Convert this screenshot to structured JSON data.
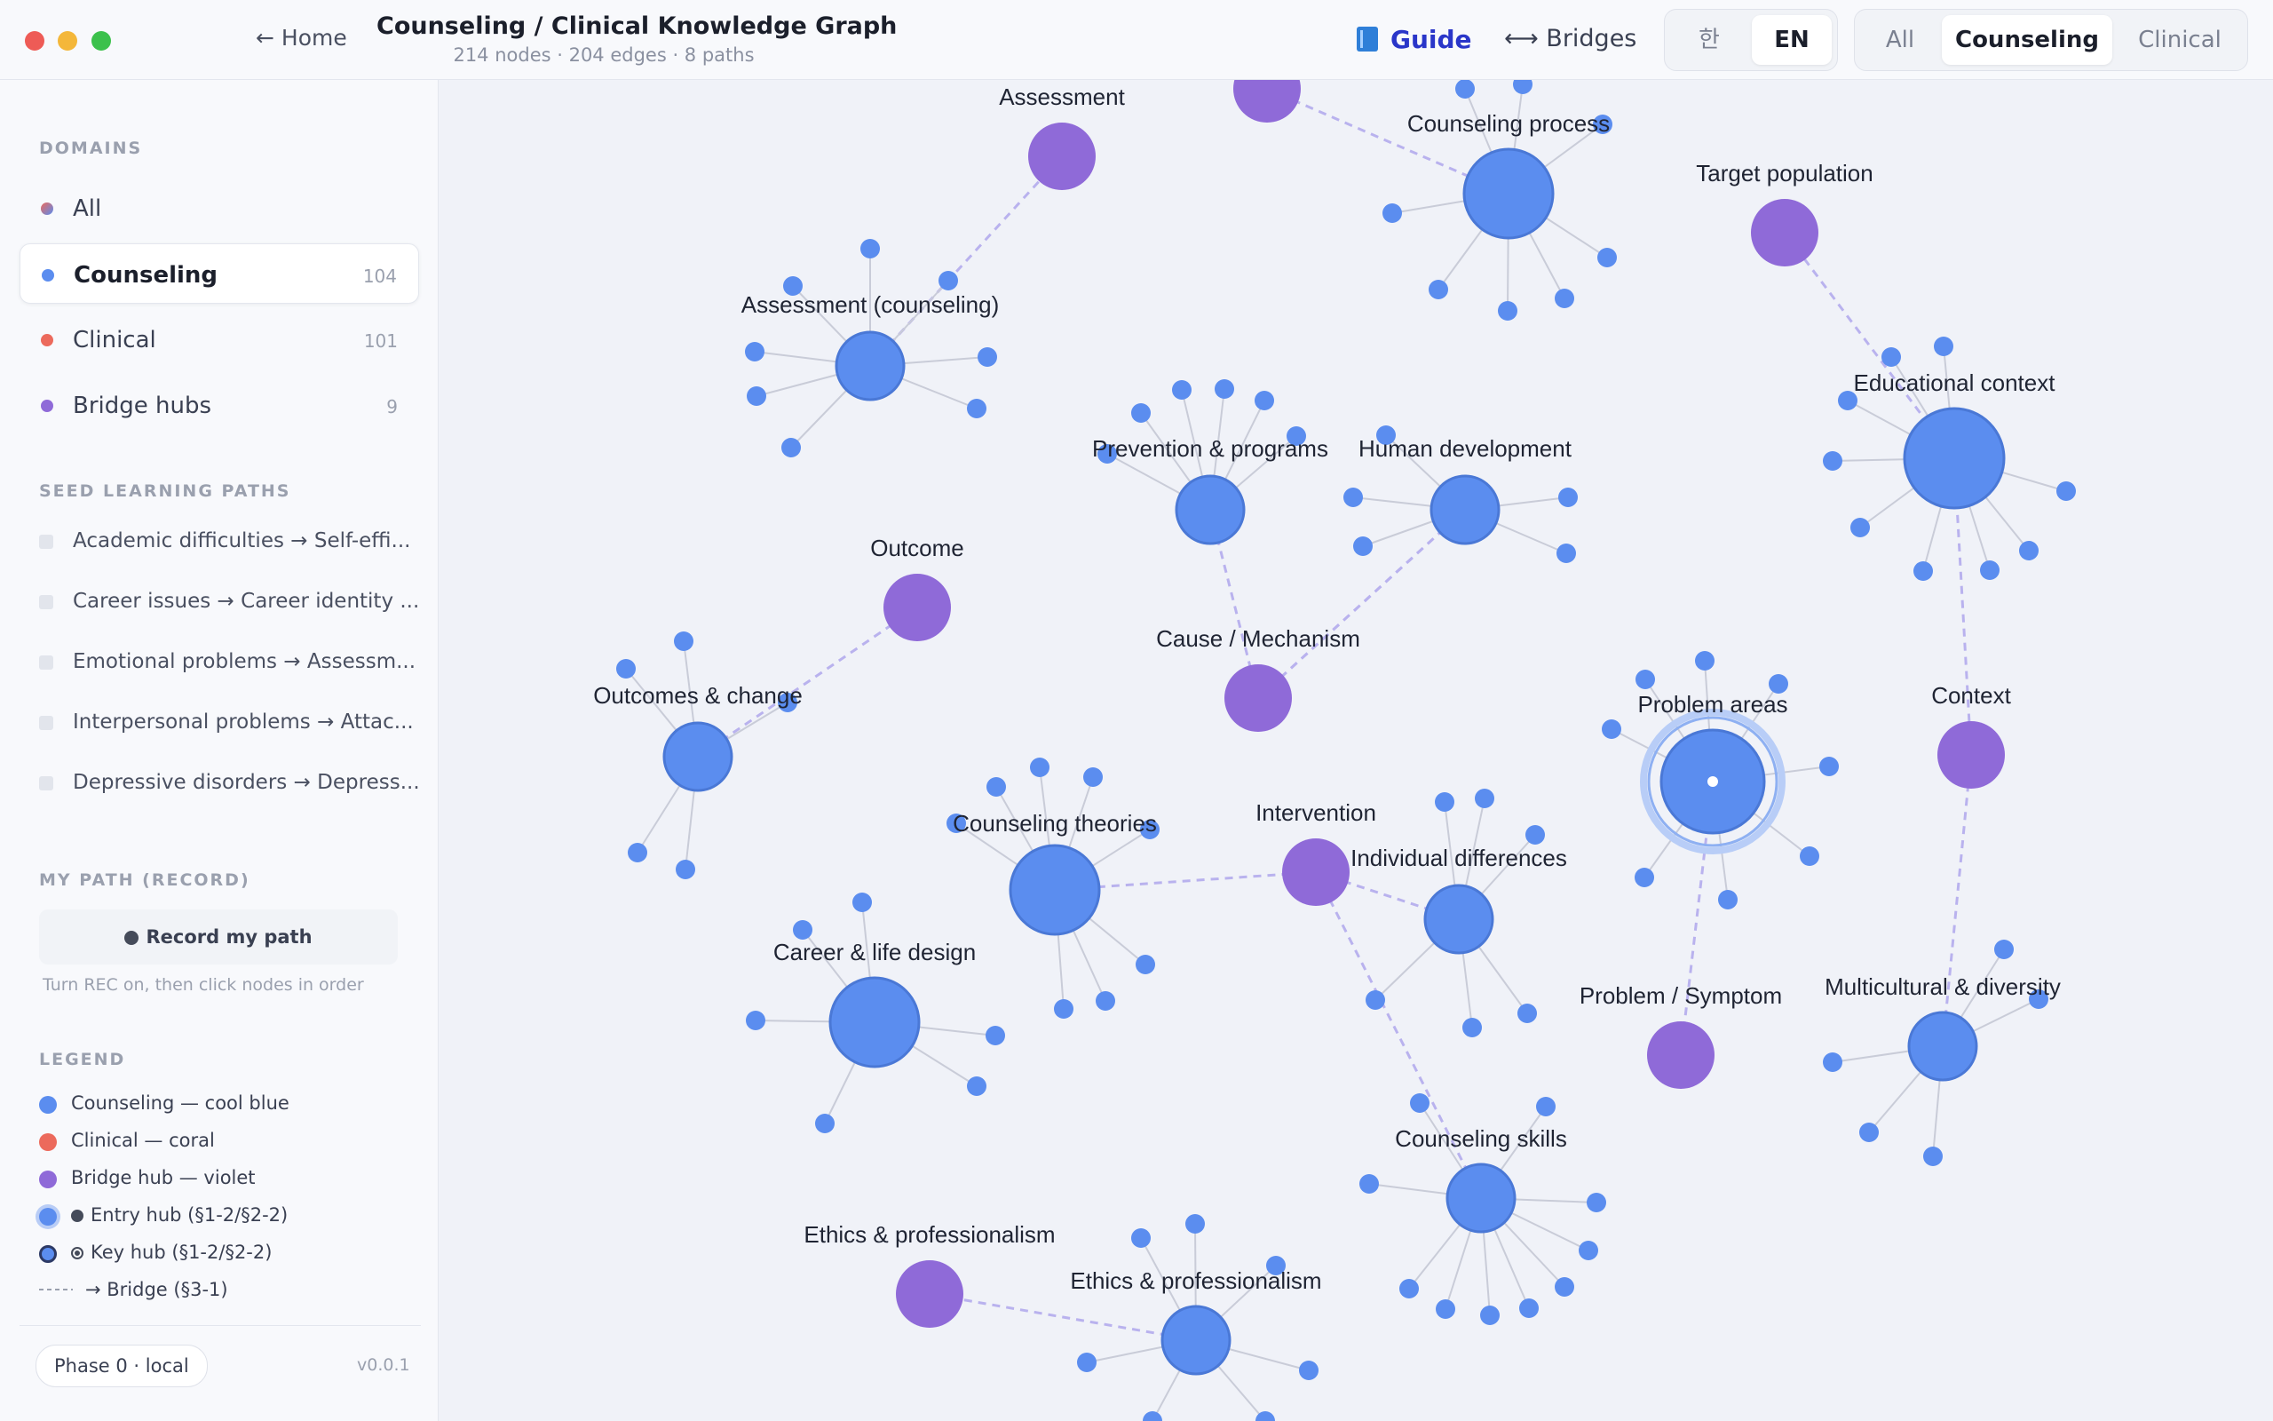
{
  "window": {
    "home_label": "← Home",
    "title": "Counseling / Clinical Knowledge Graph",
    "subtitle": "214 nodes · 204 edges · 8 paths"
  },
  "header": {
    "guide_label": "Guide",
    "bridges_label": "⟷ Bridges",
    "lang": [
      {
        "label": "한",
        "active": false
      },
      {
        "label": "EN",
        "active": true
      }
    ],
    "domain_tabs": [
      {
        "label": "All",
        "active": false
      },
      {
        "label": "Counseling",
        "active": true
      },
      {
        "label": "Clinical",
        "active": false
      }
    ]
  },
  "sidebar": {
    "domains_title": "DOMAINS",
    "domains": [
      {
        "label": "All",
        "count": "",
        "color": "#a080c0",
        "active": false
      },
      {
        "label": "Counseling",
        "count": "104",
        "color": "#5b8def",
        "active": true
      },
      {
        "label": "Clinical",
        "count": "101",
        "color": "#ec6a5c",
        "active": false
      },
      {
        "label": "Bridge hubs",
        "count": "9",
        "color": "#8f6ad8",
        "active": false
      }
    ],
    "paths_title": "SEED LEARNING PATHS",
    "paths": [
      "Academic difficulties → Self-effi...",
      "Career issues → Career identity ...",
      "Emotional problems → Assessm...",
      "Interpersonal problems → Attac...",
      "Depressive disorders → Depress..."
    ],
    "record_title": "MY PATH (RECORD)",
    "record_button": "Record my path",
    "record_hint": "Turn REC on, then click nodes in order",
    "legend_title": "LEGEND",
    "legend": [
      "Counseling — cool blue",
      "Clinical — coral",
      "Bridge hub — violet",
      "Entry hub (§1-2/§2-2)",
      "Key hub (§1-2/§2-2)",
      "→ Bridge (§3-1)"
    ],
    "phase": "Phase 0 · local",
    "version": "v0.0.1"
  },
  "colors": {
    "counseling": "#5b8def",
    "clinical": "#ec6a5c",
    "bridge": "#8f6ad8",
    "bridge_edge": "#b9b2ee",
    "spoke_edge": "#c9ccd8"
  },
  "graph": {
    "hubs": [
      {
        "label": "Counseling process",
        "type": "counseling"
      },
      {
        "label": "Assessment (counseling)",
        "type": "counseling"
      },
      {
        "label": "Educational context",
        "type": "counseling"
      },
      {
        "label": "Prevention & programs",
        "type": "counseling"
      },
      {
        "label": "Human development",
        "type": "counseling"
      },
      {
        "label": "Outcomes & change",
        "type": "counseling"
      },
      {
        "label": "Problem areas",
        "type": "counseling",
        "selected": true
      },
      {
        "label": "Counseling theories",
        "type": "counseling"
      },
      {
        "label": "Individual differences",
        "type": "counseling"
      },
      {
        "label": "Career & life design",
        "type": "counseling"
      },
      {
        "label": "Multicultural & diversity",
        "type": "counseling"
      },
      {
        "label": "Counseling skills",
        "type": "counseling"
      },
      {
        "label": "Ethics & professionalism",
        "type": "counseling"
      }
    ],
    "bridges": [
      {
        "label": ""
      },
      {
        "label": "Assessment"
      },
      {
        "label": "Target population"
      },
      {
        "label": "Outcome"
      },
      {
        "label": "Cause / Mechanism"
      },
      {
        "label": "Context"
      },
      {
        "label": "Intervention"
      },
      {
        "label": "Problem / Symptom"
      },
      {
        "label": "Ethics & professionalism"
      }
    ]
  }
}
